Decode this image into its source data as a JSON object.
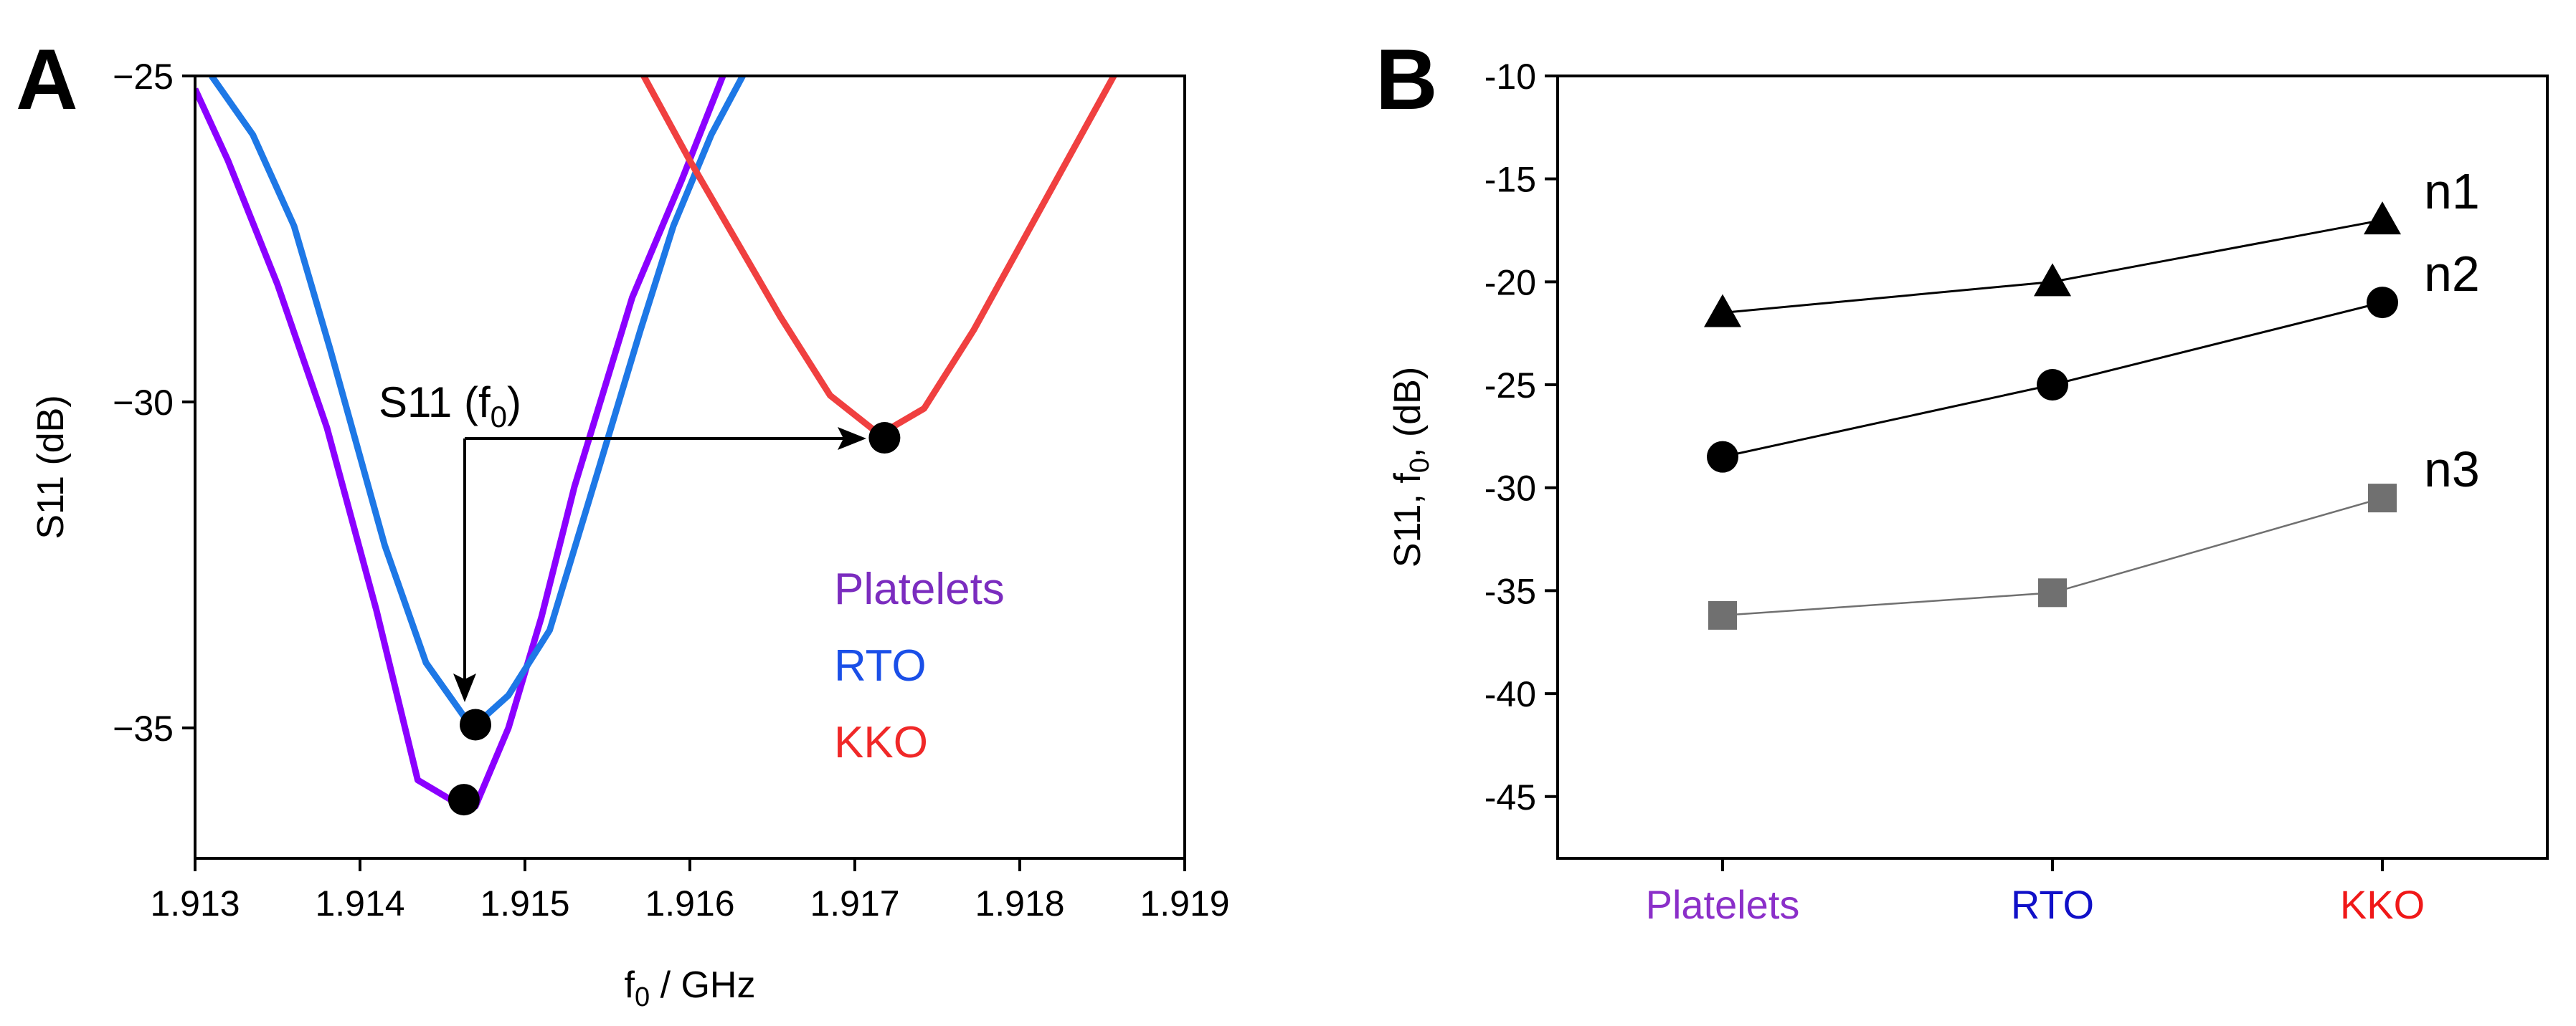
{
  "chart_data": [
    {
      "panel": "A",
      "type": "line",
      "xlabel": "f0 / GHz",
      "xlabel_main": "f",
      "xlabel_sub": "0",
      "xlabel_rest": " / GHz",
      "ylabel": "S11 (dB)",
      "xlim": [
        1.913,
        1.919
      ],
      "ylim": [
        -37,
        -25
      ],
      "xticks": [
        1.913,
        1.914,
        1.915,
        1.916,
        1.917,
        1.918,
        1.919
      ],
      "xtick_labels": [
        "1.913",
        "1.914",
        "1.915",
        "1.916",
        "1.917",
        "1.918",
        "1.919"
      ],
      "yticks": [
        -25,
        -30,
        -35
      ],
      "ytick_labels": [
        "−25",
        "−30",
        "−35"
      ],
      "series": [
        {
          "name": "Platelets",
          "color": "#8b00ff",
          "x": [
            1.913,
            1.9132,
            1.9135,
            1.9138,
            1.9141,
            1.91435,
            1.91455,
            1.9147,
            1.9149,
            1.9151,
            1.9153,
            1.91565,
            1.91595,
            1.9162
          ],
          "y": [
            -25.2,
            -26.3,
            -28.2,
            -30.4,
            -33.2,
            -35.8,
            -36.1,
            -36.2,
            -35.0,
            -33.3,
            -31.3,
            -28.4,
            -26.6,
            -25.0
          ],
          "min_point": {
            "x": 1.91463,
            "y": -36.1
          }
        },
        {
          "name": "RTO",
          "color": "#1e78e6",
          "x": [
            1.9131,
            1.91335,
            1.9136,
            1.91382,
            1.91415,
            1.9144,
            1.91468,
            1.9149,
            1.91515,
            1.91545,
            1.9157,
            1.9159,
            1.91613,
            1.91632
          ],
          "y": [
            -25.0,
            -25.9,
            -27.3,
            -29.2,
            -32.2,
            -34.0,
            -35.0,
            -34.5,
            -33.5,
            -31.0,
            -28.9,
            -27.3,
            -25.9,
            -25.0
          ],
          "min_point": {
            "x": 1.9147,
            "y": -34.95
          }
        },
        {
          "name": "KKO",
          "color": "#f04040",
          "x": [
            1.91572,
            1.916,
            1.91655,
            1.91685,
            1.91715,
            1.91742,
            1.91772,
            1.91833,
            1.91857
          ],
          "y": [
            -25.0,
            -26.3,
            -28.7,
            -29.9,
            -30.5,
            -30.1,
            -28.9,
            -26.1,
            -25.0
          ],
          "min_point": {
            "x": 1.91718,
            "y": -30.55
          }
        }
      ],
      "legend": {
        "placement": "lower-right",
        "entries": [
          "Platelets",
          "RTO",
          "KKO"
        ]
      },
      "annotation": {
        "text_main": "S11 (f",
        "text_sub": "0",
        "text_end": ")"
      }
    },
    {
      "panel": "B",
      "type": "scatter",
      "xlabel": "",
      "ylabel": "S11, f0,  (dB)",
      "ylabel_a": "S11, f",
      "ylabel_sub": "0",
      "ylabel_b": ",  (dB)",
      "categories": [
        "Platelets",
        "RTO",
        "KKO"
      ],
      "category_colors": [
        "#8b2fc9",
        "#1010c8",
        "#f01818"
      ],
      "ylim": [
        -48,
        -10
      ],
      "yticks": [
        -10,
        -15,
        -20,
        -25,
        -30,
        -35,
        -40,
        -45
      ],
      "ytick_labels": [
        "-10",
        "-15",
        "-20",
        "-25",
        "-30",
        "-35",
        "-40",
        "-45"
      ],
      "series": [
        {
          "name": "n1",
          "marker": "triangle",
          "color": "#000000",
          "values": [
            -21.5,
            -20.0,
            -17.0
          ]
        },
        {
          "name": "n2",
          "marker": "circle",
          "color": "#000000",
          "values": [
            -28.5,
            -25.0,
            -21.0
          ]
        },
        {
          "name": "n3",
          "marker": "square",
          "color": "#707070",
          "values": [
            -36.2,
            -35.1,
            -30.5
          ]
        }
      ]
    }
  ],
  "panel_letters": [
    "A",
    "B"
  ]
}
